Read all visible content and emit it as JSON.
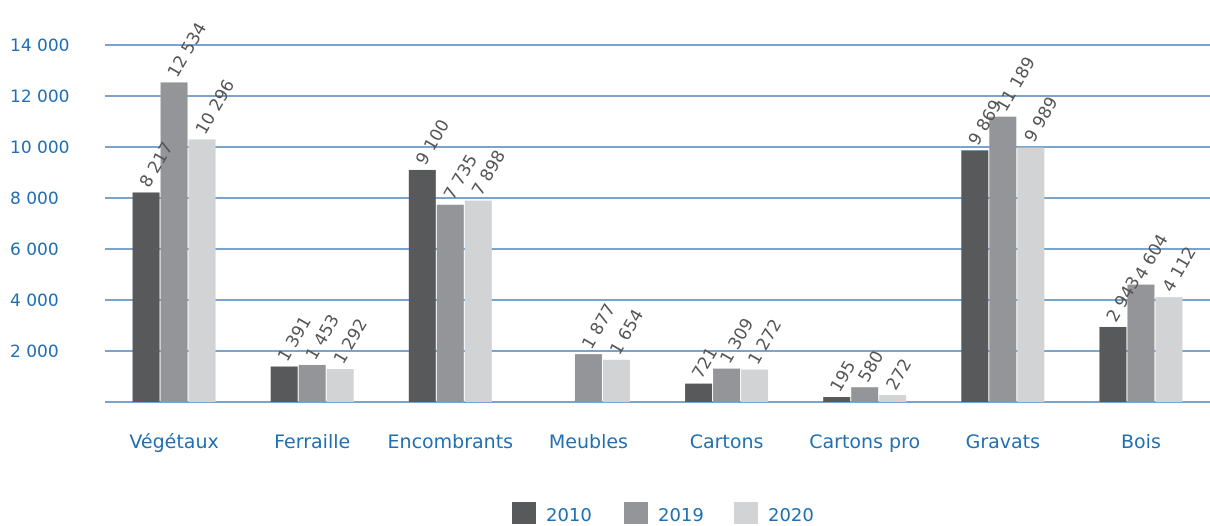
{
  "chart_data": {
    "type": "bar",
    "categories": [
      "Végétaux",
      "Ferraille",
      "Encombrants",
      "Meubles",
      "Cartons",
      "Cartons pro",
      "Gravats",
      "Bois"
    ],
    "series": [
      {
        "name": "2010",
        "values": [
          8217,
          1391,
          9100,
          null,
          721,
          195,
          9869,
          2943
        ],
        "labels": [
          "8 217",
          "1 391",
          "9 100",
          "",
          "721",
          "195",
          "9 869",
          "2 943"
        ]
      },
      {
        "name": "2019",
        "values": [
          12534,
          1453,
          7735,
          1877,
          1309,
          580,
          11189,
          4604
        ],
        "labels": [
          "12 534",
          "1 453",
          "7 735",
          "1 877",
          "1 309",
          "580",
          "11 189",
          "4 604"
        ]
      },
      {
        "name": "2020",
        "values": [
          10296,
          1292,
          7898,
          1654,
          1272,
          272,
          9989,
          4112
        ],
        "labels": [
          "10 296",
          "1 292",
          "7 898",
          "1 654",
          "1 272",
          "272",
          "9 989",
          "4 112"
        ]
      }
    ],
    "y_ticks": [
      "2 000",
      "4 000",
      "6 000",
      "8 000",
      "10 000",
      "12 000",
      "14 000"
    ],
    "y_tick_values": [
      2000,
      4000,
      6000,
      8000,
      10000,
      12000,
      14000
    ],
    "ylim": [
      0,
      14000
    ],
    "colors": [
      "#58595b",
      "#939598",
      "#d1d3d4"
    ],
    "grid_color": "#2b6cb0",
    "axis_text_color": "#1f6fb2",
    "grid": true,
    "legend_position": "bottom-center"
  }
}
